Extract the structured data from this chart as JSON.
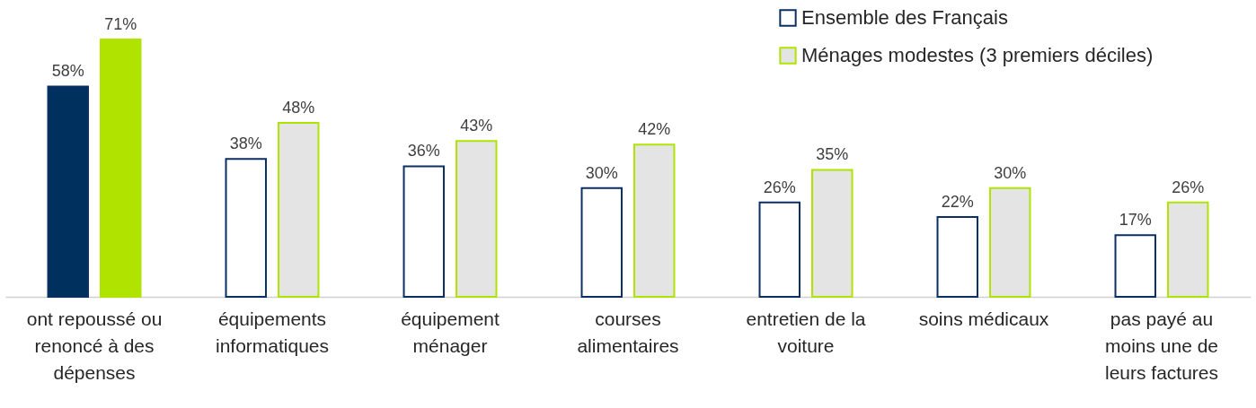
{
  "chart_data": {
    "type": "bar",
    "categories": [
      "ont repoussé ou renoncé à des dépenses",
      "équipements informatiques",
      "équipement ménager",
      "courses alimentaires",
      "entretien de la voiture",
      "soins médicaux",
      "pas payé au moins une de leurs factures"
    ],
    "series": [
      {
        "name": "Ensemble des Français",
        "color": "#0b2e63",
        "colors": [
          "#00305e",
          "#ffffff",
          "#ffffff",
          "#ffffff",
          "#ffffff",
          "#ffffff",
          "#ffffff"
        ],
        "values": [
          58,
          38,
          36,
          30,
          26,
          22,
          17
        ],
        "value_labels": [
          "58%",
          "38%",
          "36%",
          "30%",
          "26%",
          "22%",
          "17%"
        ]
      },
      {
        "name": "Ménages modestes (3 premiers déciles)",
        "color": "#b0e400",
        "colors": [
          "#b0e400",
          "#e4e4e4",
          "#e4e4e4",
          "#e4e4e4",
          "#e4e4e4",
          "#e4e4e4",
          "#e4e4e4"
        ],
        "values": [
          71,
          48,
          43,
          42,
          35,
          30,
          26
        ],
        "value_labels": [
          "71%",
          "48%",
          "43%",
          "42%",
          "35%",
          "30%",
          "26%"
        ]
      }
    ],
    "legend": "top right"
  }
}
